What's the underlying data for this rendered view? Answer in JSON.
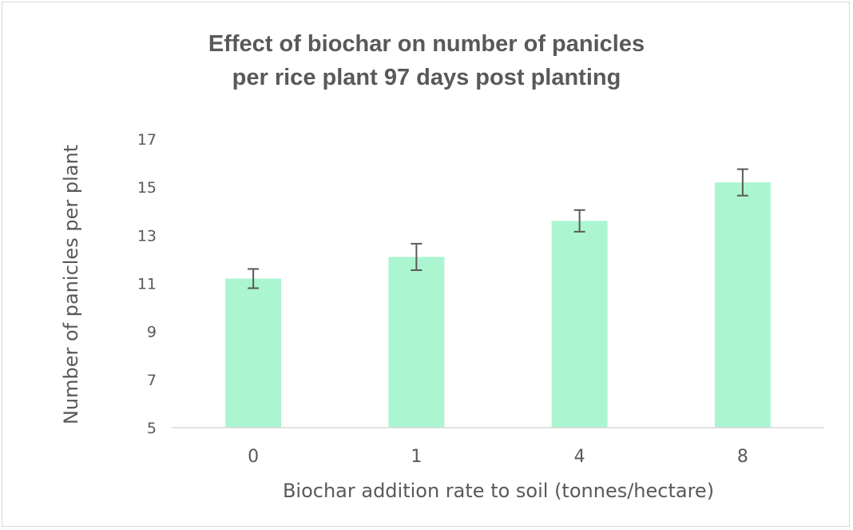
{
  "chart_data": {
    "type": "bar",
    "title_lines": [
      "Effect of biochar on number of panicles",
      "per rice plant 97 days post planting"
    ],
    "xlabel": "Biochar addition rate to soil (tonnes/hectare)",
    "ylabel": "Number of panicles per plant",
    "categories": [
      "0",
      "1",
      "4",
      "8"
    ],
    "values": [
      11.2,
      12.1,
      13.6,
      15.2
    ],
    "error": [
      0.4,
      0.55,
      0.45,
      0.55
    ],
    "ylim": [
      5,
      17
    ],
    "yticks": [
      "5",
      "7",
      "9",
      "11",
      "13",
      "15",
      "17"
    ],
    "grid": false,
    "bar_color": "#abf5d1",
    "error_color": "#595959"
  }
}
